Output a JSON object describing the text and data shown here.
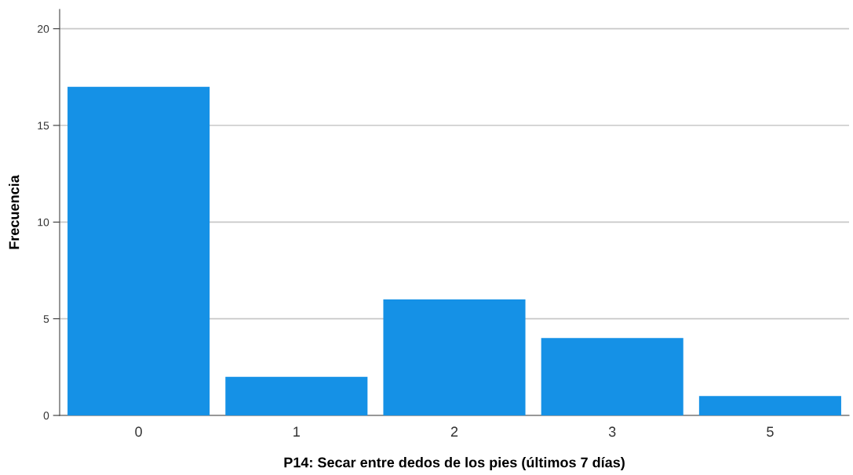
{
  "chart_data": {
    "type": "bar",
    "xlabel": "P14: Secar entre dedos de los pies (últimos 7 días)",
    "ylabel": "Frecuencia",
    "categories": [
      "0",
      "1",
      "2",
      "3",
      "5"
    ],
    "values": [
      17,
      2,
      6,
      4,
      1
    ],
    "color": "#1591e6",
    "ylim": [
      0,
      21
    ],
    "yticks": [
      0,
      5,
      10,
      15,
      20
    ],
    "grid": "y"
  }
}
